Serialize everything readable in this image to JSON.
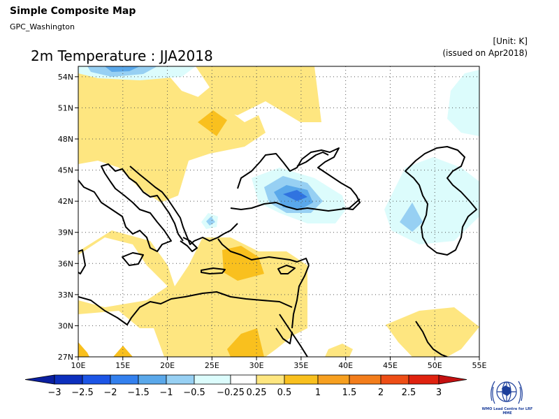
{
  "header": {
    "title": "Simple Composite Map",
    "source": "GPC_Washington",
    "map_title": "2m Temperature : JJA2018",
    "unit": "[Unit: K]",
    "issued": "(issued on Apr2018)"
  },
  "map": {
    "lon_range": [
      10,
      55
    ],
    "lat_range": [
      27,
      55
    ],
    "lat_ticks": [
      {
        "value": 54,
        "label": "54N"
      },
      {
        "value": 51,
        "label": "51N"
      },
      {
        "value": 48,
        "label": "48N"
      },
      {
        "value": 45,
        "label": "45N"
      },
      {
        "value": 42,
        "label": "42N"
      },
      {
        "value": 39,
        "label": "39N"
      },
      {
        "value": 36,
        "label": "36N"
      },
      {
        "value": 33,
        "label": "33N"
      },
      {
        "value": 30,
        "label": "30N"
      },
      {
        "value": 27,
        "label": "27N"
      }
    ],
    "lon_ticks": [
      {
        "value": 10,
        "label": "10E"
      },
      {
        "value": 15,
        "label": "15E"
      },
      {
        "value": 20,
        "label": "20E"
      },
      {
        "value": 25,
        "label": "25E"
      },
      {
        "value": 30,
        "label": "30E"
      },
      {
        "value": 35,
        "label": "35E"
      },
      {
        "value": 40,
        "label": "40E"
      },
      {
        "value": 45,
        "label": "45E"
      },
      {
        "value": 50,
        "label": "50E"
      },
      {
        "value": 55,
        "label": "55E"
      }
    ],
    "gridlines": "dotted",
    "colors": {
      "anom_0_25_0_5": "#fee680",
      "anom_0_5_1": "#f9c01e",
      "anom_m0_25_m0_5": "#dcfcfc",
      "anom_m0_5_m1": "#97d0f3",
      "anom_m1_m1_5": "#5aa8ea",
      "anom_m1_5_m2": "#3073e0",
      "coast": "#000000"
    }
  },
  "colorbar": {
    "labels": [
      "−3",
      "−2.5",
      "−2",
      "−1.5",
      "−1",
      "−0.5",
      "−0.25",
      "0.25",
      "0.5",
      "1",
      "1.5",
      "2",
      "2.5",
      "3"
    ],
    "colors": [
      "#0c2fbd",
      "#1c55e6",
      "#3380ee",
      "#5aa8ea",
      "#97d0f3",
      "#dcfcfc",
      "#ffffff",
      "#fee680",
      "#f9c01e",
      "#f7a020",
      "#f37d1b",
      "#ee4e16",
      "#e0220f"
    ],
    "end_left": "#0a1fa0",
    "end_right": "#c41010"
  },
  "logo": {
    "caption": "WMO Lead Centre for LRF MME"
  }
}
